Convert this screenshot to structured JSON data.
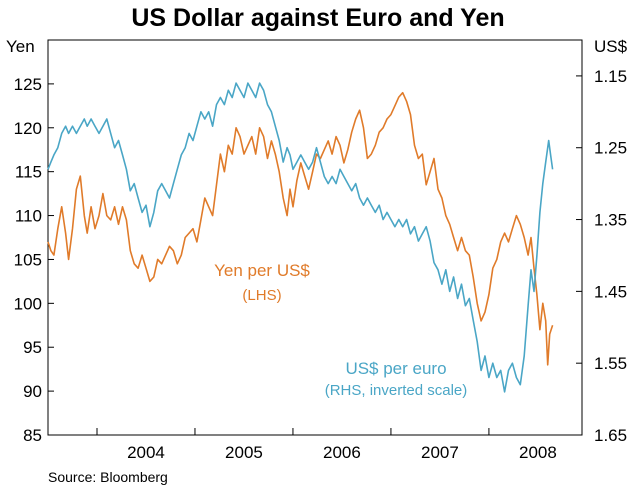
{
  "chart_data": {
    "type": "line",
    "title": "US Dollar against Euro and Yen",
    "source": "Source: Bloomberg",
    "left_axis": {
      "unit": "Yen",
      "min": 85,
      "max": 130,
      "ticks": [
        85,
        90,
        95,
        100,
        105,
        110,
        115,
        120,
        125
      ]
    },
    "right_axis": {
      "unit": "US$",
      "inverted": true,
      "min": 1.65,
      "max": 1.1,
      "ticks": [
        "1.65",
        "1.55",
        "1.45",
        "1.35",
        "1.25",
        "1.15"
      ]
    },
    "x_axis": {
      "min": 2003.5,
      "max": 2008.95,
      "labels": [
        "2004",
        "2005",
        "2006",
        "2007",
        "2008"
      ]
    },
    "grid": false,
    "series": [
      {
        "name": "Yen per US$",
        "axis_note": "(LHS)",
        "color": "#e07b2a",
        "axis": "left",
        "points": [
          [
            2003.5,
            107.0
          ],
          [
            2003.53,
            106.0
          ],
          [
            2003.56,
            105.5
          ],
          [
            2003.6,
            108.5
          ],
          [
            2003.64,
            111.0
          ],
          [
            2003.68,
            108.0
          ],
          [
            2003.71,
            105.0
          ],
          [
            2003.75,
            108.5
          ],
          [
            2003.79,
            113.0
          ],
          [
            2003.83,
            114.5
          ],
          [
            2003.87,
            110.0
          ],
          [
            2003.9,
            108.0
          ],
          [
            2003.94,
            111.0
          ],
          [
            2003.98,
            108.5
          ],
          [
            2004.02,
            110.0
          ],
          [
            2004.06,
            112.5
          ],
          [
            2004.1,
            110.0
          ],
          [
            2004.14,
            109.5
          ],
          [
            2004.18,
            111.0
          ],
          [
            2004.22,
            109.0
          ],
          [
            2004.26,
            111.0
          ],
          [
            2004.3,
            109.5
          ],
          [
            2004.34,
            106.0
          ],
          [
            2004.38,
            104.5
          ],
          [
            2004.42,
            104.0
          ],
          [
            2004.46,
            105.5
          ],
          [
            2004.5,
            104.0
          ],
          [
            2004.54,
            102.5
          ],
          [
            2004.58,
            103.0
          ],
          [
            2004.62,
            105.0
          ],
          [
            2004.66,
            104.5
          ],
          [
            2004.7,
            105.5
          ],
          [
            2004.74,
            106.5
          ],
          [
            2004.78,
            106.0
          ],
          [
            2004.82,
            104.5
          ],
          [
            2004.86,
            105.5
          ],
          [
            2004.9,
            107.5
          ],
          [
            2004.94,
            108.0
          ],
          [
            2004.98,
            108.5
          ],
          [
            2005.02,
            107.0
          ],
          [
            2005.06,
            109.5
          ],
          [
            2005.1,
            112.0
          ],
          [
            2005.14,
            111.0
          ],
          [
            2005.18,
            110.0
          ],
          [
            2005.22,
            113.5
          ],
          [
            2005.26,
            117.0
          ],
          [
            2005.3,
            115.0
          ],
          [
            2005.34,
            118.0
          ],
          [
            2005.38,
            117.0
          ],
          [
            2005.42,
            120.0
          ],
          [
            2005.46,
            119.0
          ],
          [
            2005.5,
            117.0
          ],
          [
            2005.54,
            118.0
          ],
          [
            2005.58,
            119.0
          ],
          [
            2005.62,
            117.0
          ],
          [
            2005.66,
            120.0
          ],
          [
            2005.7,
            119.0
          ],
          [
            2005.74,
            116.5
          ],
          [
            2005.78,
            118.5
          ],
          [
            2005.82,
            117.0
          ],
          [
            2005.86,
            115.0
          ],
          [
            2005.9,
            112.0
          ],
          [
            2005.94,
            110.0
          ],
          [
            2005.97,
            113.0
          ],
          [
            2006.0,
            111.0
          ],
          [
            2006.04,
            114.0
          ],
          [
            2006.08,
            116.0
          ],
          [
            2006.12,
            114.5
          ],
          [
            2006.16,
            113.0
          ],
          [
            2006.2,
            115.0
          ],
          [
            2006.24,
            117.0
          ],
          [
            2006.28,
            116.5
          ],
          [
            2006.32,
            117.5
          ],
          [
            2006.36,
            118.5
          ],
          [
            2006.4,
            117.0
          ],
          [
            2006.44,
            119.0
          ],
          [
            2006.48,
            118.0
          ],
          [
            2006.52,
            116.0
          ],
          [
            2006.56,
            117.5
          ],
          [
            2006.6,
            119.5
          ],
          [
            2006.64,
            121.0
          ],
          [
            2006.68,
            122.0
          ],
          [
            2006.72,
            120.0
          ],
          [
            2006.76,
            116.5
          ],
          [
            2006.8,
            117.0
          ],
          [
            2006.84,
            118.0
          ],
          [
            2006.88,
            119.5
          ],
          [
            2006.92,
            120.0
          ],
          [
            2006.96,
            121.0
          ],
          [
            2007.0,
            121.5
          ],
          [
            2007.04,
            122.5
          ],
          [
            2007.08,
            123.5
          ],
          [
            2007.12,
            124.0
          ],
          [
            2007.16,
            123.0
          ],
          [
            2007.2,
            121.5
          ],
          [
            2007.24,
            118.0
          ],
          [
            2007.28,
            116.5
          ],
          [
            2007.32,
            117.0
          ],
          [
            2007.36,
            113.5
          ],
          [
            2007.4,
            115.0
          ],
          [
            2007.44,
            116.5
          ],
          [
            2007.48,
            113.0
          ],
          [
            2007.52,
            112.0
          ],
          [
            2007.56,
            110.0
          ],
          [
            2007.6,
            109.0
          ],
          [
            2007.64,
            107.5
          ],
          [
            2007.68,
            106.0
          ],
          [
            2007.72,
            107.5
          ],
          [
            2007.76,
            106.0
          ],
          [
            2007.8,
            105.5
          ],
          [
            2007.84,
            103.0
          ],
          [
            2007.88,
            100.0
          ],
          [
            2007.92,
            98.0
          ],
          [
            2007.96,
            99.0
          ],
          [
            2008.0,
            101.0
          ],
          [
            2008.04,
            104.0
          ],
          [
            2008.08,
            105.0
          ],
          [
            2008.12,
            107.0
          ],
          [
            2008.16,
            108.0
          ],
          [
            2008.2,
            107.0
          ],
          [
            2008.24,
            108.5
          ],
          [
            2008.28,
            110.0
          ],
          [
            2008.32,
            109.0
          ],
          [
            2008.36,
            107.5
          ],
          [
            2008.4,
            105.5
          ],
          [
            2008.43,
            107.5
          ],
          [
            2008.46,
            104.0
          ],
          [
            2008.49,
            101.0
          ],
          [
            2008.52,
            97.0
          ],
          [
            2008.55,
            100.0
          ],
          [
            2008.58,
            98.0
          ],
          [
            2008.6,
            93.0
          ],
          [
            2008.62,
            96.5
          ],
          [
            2008.65,
            97.5
          ]
        ]
      },
      {
        "name": "US$ per euro",
        "axis_note": "(RHS, inverted scale)",
        "color": "#4aa6c6",
        "axis": "right",
        "points": [
          [
            2003.5,
            1.28
          ],
          [
            2003.53,
            1.27
          ],
          [
            2003.56,
            1.26
          ],
          [
            2003.6,
            1.25
          ],
          [
            2003.64,
            1.23
          ],
          [
            2003.68,
            1.22
          ],
          [
            2003.71,
            1.23
          ],
          [
            2003.75,
            1.22
          ],
          [
            2003.79,
            1.23
          ],
          [
            2003.83,
            1.22
          ],
          [
            2003.87,
            1.21
          ],
          [
            2003.9,
            1.22
          ],
          [
            2003.94,
            1.21
          ],
          [
            2003.98,
            1.22
          ],
          [
            2004.02,
            1.23
          ],
          [
            2004.06,
            1.22
          ],
          [
            2004.1,
            1.21
          ],
          [
            2004.14,
            1.23
          ],
          [
            2004.18,
            1.25
          ],
          [
            2004.22,
            1.24
          ],
          [
            2004.26,
            1.26
          ],
          [
            2004.3,
            1.28
          ],
          [
            2004.34,
            1.31
          ],
          [
            2004.38,
            1.3
          ],
          [
            2004.42,
            1.32
          ],
          [
            2004.46,
            1.34
          ],
          [
            2004.5,
            1.33
          ],
          [
            2004.54,
            1.36
          ],
          [
            2004.58,
            1.34
          ],
          [
            2004.62,
            1.31
          ],
          [
            2004.66,
            1.3
          ],
          [
            2004.7,
            1.31
          ],
          [
            2004.74,
            1.32
          ],
          [
            2004.78,
            1.3
          ],
          [
            2004.82,
            1.28
          ],
          [
            2004.86,
            1.26
          ],
          [
            2004.9,
            1.25
          ],
          [
            2004.94,
            1.23
          ],
          [
            2004.98,
            1.24
          ],
          [
            2005.02,
            1.22
          ],
          [
            2005.06,
            1.2
          ],
          [
            2005.1,
            1.21
          ],
          [
            2005.14,
            1.2
          ],
          [
            2005.18,
            1.22
          ],
          [
            2005.22,
            1.19
          ],
          [
            2005.26,
            1.18
          ],
          [
            2005.3,
            1.19
          ],
          [
            2005.34,
            1.17
          ],
          [
            2005.38,
            1.18
          ],
          [
            2005.42,
            1.16
          ],
          [
            2005.46,
            1.17
          ],
          [
            2005.5,
            1.18
          ],
          [
            2005.54,
            1.16
          ],
          [
            2005.58,
            1.17
          ],
          [
            2005.62,
            1.18
          ],
          [
            2005.66,
            1.16
          ],
          [
            2005.7,
            1.17
          ],
          [
            2005.74,
            1.19
          ],
          [
            2005.78,
            1.2
          ],
          [
            2005.82,
            1.22
          ],
          [
            2005.86,
            1.24
          ],
          [
            2005.9,
            1.27
          ],
          [
            2005.94,
            1.25
          ],
          [
            2005.97,
            1.26
          ],
          [
            2006.0,
            1.28
          ],
          [
            2006.04,
            1.27
          ],
          [
            2006.08,
            1.26
          ],
          [
            2006.12,
            1.27
          ],
          [
            2006.16,
            1.28
          ],
          [
            2006.2,
            1.27
          ],
          [
            2006.24,
            1.25
          ],
          [
            2006.28,
            1.27
          ],
          [
            2006.32,
            1.29
          ],
          [
            2006.36,
            1.3
          ],
          [
            2006.4,
            1.29
          ],
          [
            2006.44,
            1.3
          ],
          [
            2006.48,
            1.28
          ],
          [
            2006.52,
            1.29
          ],
          [
            2006.56,
            1.3
          ],
          [
            2006.6,
            1.31
          ],
          [
            2006.64,
            1.3
          ],
          [
            2006.68,
            1.32
          ],
          [
            2006.72,
            1.33
          ],
          [
            2006.76,
            1.32
          ],
          [
            2006.8,
            1.33
          ],
          [
            2006.84,
            1.34
          ],
          [
            2006.88,
            1.33
          ],
          [
            2006.92,
            1.35
          ],
          [
            2006.96,
            1.34
          ],
          [
            2007.0,
            1.35
          ],
          [
            2007.04,
            1.36
          ],
          [
            2007.08,
            1.35
          ],
          [
            2007.12,
            1.36
          ],
          [
            2007.16,
            1.35
          ],
          [
            2007.2,
            1.37
          ],
          [
            2007.24,
            1.36
          ],
          [
            2007.28,
            1.38
          ],
          [
            2007.32,
            1.37
          ],
          [
            2007.36,
            1.36
          ],
          [
            2007.4,
            1.38
          ],
          [
            2007.44,
            1.41
          ],
          [
            2007.48,
            1.42
          ],
          [
            2007.52,
            1.44
          ],
          [
            2007.56,
            1.42
          ],
          [
            2007.6,
            1.45
          ],
          [
            2007.64,
            1.43
          ],
          [
            2007.68,
            1.46
          ],
          [
            2007.72,
            1.44
          ],
          [
            2007.76,
            1.47
          ],
          [
            2007.8,
            1.46
          ],
          [
            2007.84,
            1.49
          ],
          [
            2007.88,
            1.52
          ],
          [
            2007.92,
            1.56
          ],
          [
            2007.96,
            1.54
          ],
          [
            2008.0,
            1.57
          ],
          [
            2008.04,
            1.55
          ],
          [
            2008.08,
            1.57
          ],
          [
            2008.12,
            1.56
          ],
          [
            2008.16,
            1.59
          ],
          [
            2008.2,
            1.56
          ],
          [
            2008.24,
            1.55
          ],
          [
            2008.28,
            1.57
          ],
          [
            2008.32,
            1.58
          ],
          [
            2008.36,
            1.54
          ],
          [
            2008.4,
            1.47
          ],
          [
            2008.43,
            1.42
          ],
          [
            2008.46,
            1.45
          ],
          [
            2008.49,
            1.4
          ],
          [
            2008.52,
            1.34
          ],
          [
            2008.55,
            1.3
          ],
          [
            2008.58,
            1.27
          ],
          [
            2008.61,
            1.24
          ],
          [
            2008.63,
            1.26
          ],
          [
            2008.65,
            1.28
          ]
        ]
      }
    ]
  }
}
